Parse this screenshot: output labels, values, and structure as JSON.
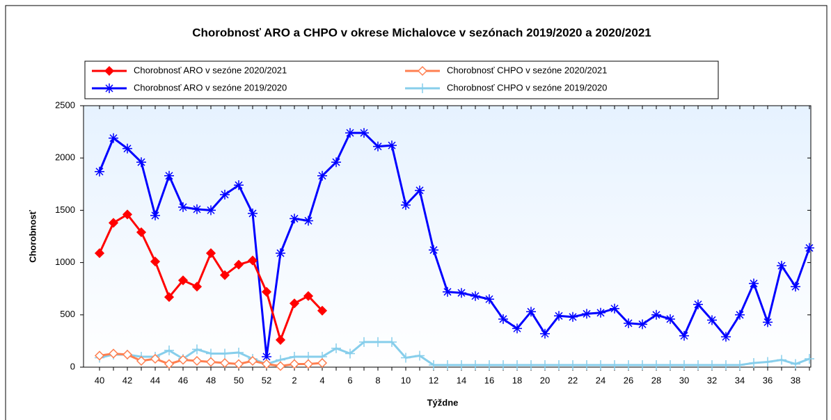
{
  "chart_data": {
    "type": "line",
    "title": "Chorobnosť ARO a CHPO v okrese Michalovce v sezónach 2019/2020 a 2020/2021",
    "x_label": "Týždne",
    "y_label": "Chorobnosť",
    "categories": [
      "40",
      null,
      "42",
      null,
      "44",
      null,
      "46",
      null,
      "48",
      null,
      "50",
      null,
      "52",
      null,
      "2",
      null,
      "4",
      null,
      "6",
      null,
      "8",
      null,
      "10",
      null,
      "12",
      null,
      "14",
      null,
      "16",
      null,
      "18",
      null,
      "20",
      null,
      "22",
      null,
      "24",
      null,
      "26",
      null,
      "28",
      null,
      "30",
      null,
      "32",
      null,
      "34",
      null,
      "36",
      null,
      "38",
      null
    ],
    "series": [
      {
        "name": "Chorobnosť ARO v sezóne 2020/2021",
        "color": "#ff0000",
        "marker": "diamond",
        "values": [
          1090,
          1380,
          1460,
          1290,
          1010,
          670,
          830,
          770,
          1090,
          880,
          980,
          1020,
          720,
          260,
          610,
          680,
          540,
          null,
          null,
          null,
          null,
          null,
          null,
          null,
          null,
          null,
          null,
          null,
          null,
          null,
          null,
          null,
          null,
          null,
          null,
          null,
          null,
          null,
          null,
          null,
          null,
          null,
          null,
          null,
          null,
          null,
          null,
          null,
          null,
          null,
          null,
          null
        ]
      },
      {
        "name": "Chorobnosť CHPO v sezóne 2020/2021",
        "color": "#ff7f50",
        "marker": "hollow-diamond",
        "values": [
          110,
          130,
          120,
          60,
          80,
          30,
          70,
          60,
          50,
          40,
          30,
          60,
          30,
          10,
          30,
          30,
          40,
          null,
          null,
          null,
          null,
          null,
          null,
          null,
          null,
          null,
          null,
          null,
          null,
          null,
          null,
          null,
          null,
          null,
          null,
          null,
          null,
          null,
          null,
          null,
          null,
          null,
          null,
          null,
          null,
          null,
          null,
          null,
          null,
          null,
          null,
          null
        ]
      },
      {
        "name": "Chorobnosť ARO v sezóne 2019/2020",
        "color": "#0000ff",
        "marker": "asterisk",
        "values": [
          1870,
          2190,
          2090,
          1960,
          1450,
          1830,
          1530,
          1510,
          1500,
          1650,
          1740,
          1470,
          100,
          1090,
          1420,
          1400,
          1830,
          1960,
          2240,
          2240,
          2110,
          2120,
          1550,
          1690,
          1120,
          720,
          710,
          680,
          650,
          460,
          370,
          530,
          320,
          490,
          480,
          510,
          520,
          560,
          420,
          410,
          500,
          460,
          300,
          600,
          450,
          290,
          500,
          800,
          430,
          970,
          770,
          1140
        ]
      },
      {
        "name": "Chorobnosť CHPO v sezóne 2019/2020",
        "color": "#87ceeb",
        "marker": "plus",
        "values": [
          90,
          120,
          120,
          100,
          100,
          160,
          80,
          170,
          130,
          130,
          140,
          80,
          30,
          70,
          100,
          100,
          100,
          180,
          130,
          240,
          240,
          240,
          90,
          110,
          20,
          20,
          20,
          20,
          20,
          20,
          20,
          20,
          20,
          20,
          20,
          20,
          20,
          20,
          20,
          20,
          20,
          20,
          20,
          20,
          20,
          20,
          20,
          40,
          50,
          70,
          30,
          80
        ]
      }
    ],
    "ylim": [
      0,
      2500
    ],
    "yticks": [
      0,
      500,
      1000,
      1500,
      2000,
      2500
    ],
    "legend": "top"
  }
}
